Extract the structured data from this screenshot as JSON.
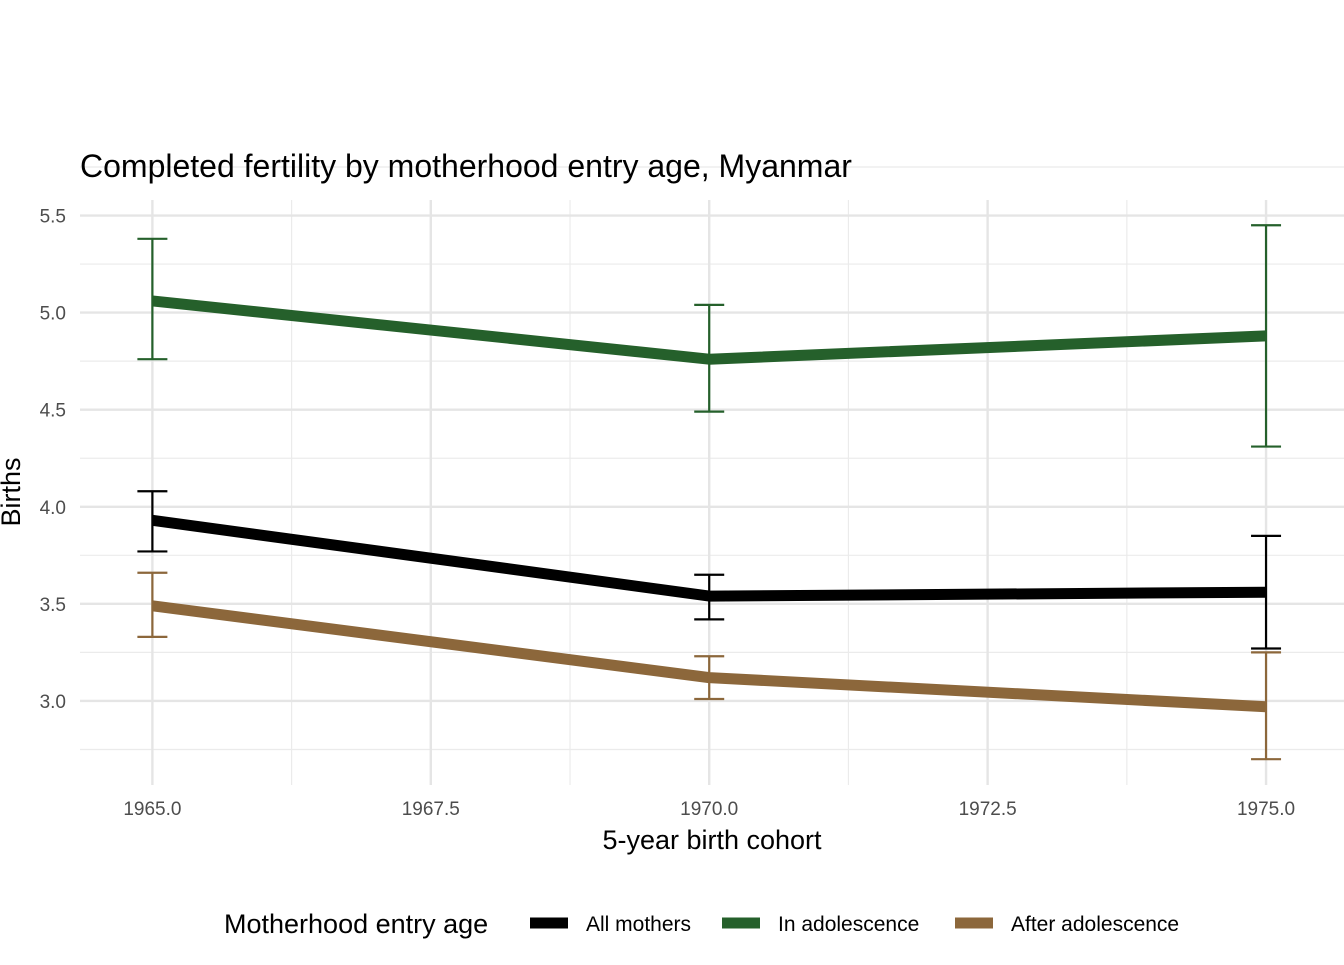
{
  "chart_data": {
    "type": "line",
    "title": "Completed fertility by motherhood entry age,  Myanmar",
    "xlabel": "5-year birth cohort",
    "ylabel": "Births",
    "x": [
      1965,
      1970,
      1975
    ],
    "xlim": [
      1964.35,
      1975.7
    ],
    "ylim": [
      2.567,
      5.58
    ],
    "xticks": [
      1965,
      1967.5,
      1970,
      1972.5,
      1975
    ],
    "xtick_labels": [
      "1965.0",
      "1967.5",
      "1970.0",
      "1972.5",
      "1975.0"
    ],
    "yticks": [
      3.0,
      3.5,
      4.0,
      4.5,
      5.0,
      5.5
    ],
    "ytick_labels": [
      "3.0",
      "3.5",
      "4.0",
      "4.5",
      "5.0",
      "5.5"
    ],
    "grid": true,
    "legend": {
      "title": "Motherhood entry age",
      "placement": "bottom"
    },
    "series": [
      {
        "name": "All mothers",
        "color": "#000000",
        "values": [
          3.93,
          3.54,
          3.56
        ],
        "lower": [
          3.77,
          3.42,
          3.27
        ],
        "upper": [
          4.08,
          3.65,
          3.85
        ]
      },
      {
        "name": "In adolescence",
        "color": "#25602B",
        "values": [
          5.06,
          4.76,
          4.88
        ],
        "lower": [
          4.76,
          4.49,
          4.31
        ],
        "upper": [
          5.38,
          5.04,
          5.45
        ]
      },
      {
        "name": "After adolescence",
        "color": "#8C673B",
        "values": [
          3.49,
          3.12,
          2.97
        ],
        "lower": [
          3.33,
          3.01,
          2.7
        ],
        "upper": [
          3.66,
          3.23,
          3.25
        ]
      }
    ]
  }
}
